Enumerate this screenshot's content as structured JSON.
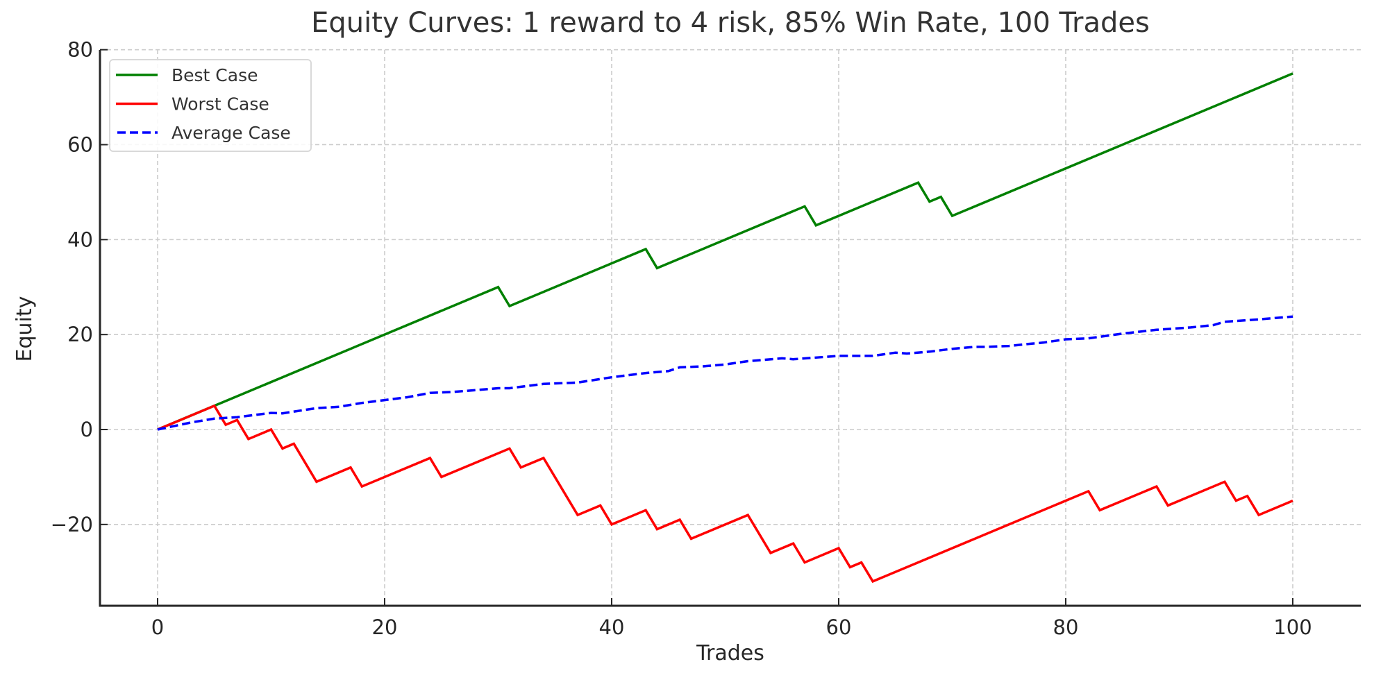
{
  "chart_data": {
    "type": "line",
    "title": "Equity Curves: 1 reward to 4 risk, 85% Win Rate, 100 Trades",
    "xlabel": "Trades",
    "ylabel": "Equity",
    "xlim": [
      -5,
      105.3
    ],
    "ylim": [
      -37.4,
      80
    ],
    "xticks": [
      0,
      20,
      40,
      60,
      80,
      100
    ],
    "yticks": [
      -20,
      0,
      20,
      40,
      60,
      80
    ],
    "ytick_labels": [
      "−20",
      "0",
      "20",
      "40",
      "60",
      "80"
    ],
    "grid": true,
    "legend_position": "upper left",
    "series": [
      {
        "name": "Best Case",
        "color": "#008000",
        "style": "solid",
        "breakpoints": [
          [
            0,
            0
          ],
          [
            30,
            30
          ],
          [
            31,
            26
          ],
          [
            43,
            38
          ],
          [
            44,
            34
          ],
          [
            57,
            47
          ],
          [
            58,
            43
          ],
          [
            67,
            52
          ],
          [
            68,
            48
          ],
          [
            69,
            49
          ],
          [
            70,
            45
          ],
          [
            100,
            75
          ]
        ]
      },
      {
        "name": "Worst Case",
        "color": "#ff0000",
        "style": "solid",
        "breakpoints": [
          [
            0,
            0
          ],
          [
            5,
            5
          ],
          [
            6,
            1
          ],
          [
            7,
            2
          ],
          [
            8,
            -2
          ],
          [
            10,
            0
          ],
          [
            11,
            -4
          ],
          [
            12,
            -3
          ],
          [
            14,
            -11
          ],
          [
            17,
            -8
          ],
          [
            18,
            -12
          ],
          [
            24,
            -6
          ],
          [
            25,
            -10
          ],
          [
            31,
            -4
          ],
          [
            32,
            -8
          ],
          [
            34,
            -6
          ],
          [
            37,
            -18
          ],
          [
            39,
            -16
          ],
          [
            40,
            -20
          ],
          [
            43,
            -17
          ],
          [
            44,
            -21
          ],
          [
            46,
            -19
          ],
          [
            47,
            -23
          ],
          [
            52,
            -18
          ],
          [
            54,
            -26
          ],
          [
            56,
            -24
          ],
          [
            57,
            -28
          ],
          [
            60,
            -25
          ],
          [
            61,
            -29
          ],
          [
            62,
            -28
          ],
          [
            63,
            -32
          ],
          [
            82,
            -13
          ],
          [
            83,
            -17
          ],
          [
            88,
            -12
          ],
          [
            89,
            -16
          ],
          [
            94,
            -11
          ],
          [
            95,
            -15
          ],
          [
            96,
            -14
          ],
          [
            97,
            -18
          ],
          [
            100,
            -15
          ]
        ]
      },
      {
        "name": "Average Case",
        "color": "#0000ff",
        "style": "dashed",
        "breakpoints": [
          [
            0,
            0
          ],
          [
            3,
            1.5
          ],
          [
            5,
            2.3
          ],
          [
            7,
            2.6
          ],
          [
            10,
            3.5
          ],
          [
            11,
            3.4
          ],
          [
            14,
            4.5
          ],
          [
            16,
            4.8
          ],
          [
            18,
            5.6
          ],
          [
            20,
            6.2
          ],
          [
            22,
            6.8
          ],
          [
            24,
            7.7
          ],
          [
            26,
            7.9
          ],
          [
            30,
            8.7
          ],
          [
            31,
            8.7
          ],
          [
            34,
            9.6
          ],
          [
            37,
            9.9
          ],
          [
            40,
            11.0
          ],
          [
            43,
            11.9
          ],
          [
            45,
            12.3
          ],
          [
            46,
            13.1
          ],
          [
            48,
            13.3
          ],
          [
            50,
            13.7
          ],
          [
            52,
            14.4
          ],
          [
            55,
            15.0
          ],
          [
            56,
            14.8
          ],
          [
            60,
            15.5
          ],
          [
            63,
            15.5
          ],
          [
            65,
            16.2
          ],
          [
            66,
            16.0
          ],
          [
            68,
            16.4
          ],
          [
            70,
            17.0
          ],
          [
            72,
            17.4
          ],
          [
            73,
            17.4
          ],
          [
            75,
            17.6
          ],
          [
            77,
            18.1
          ],
          [
            78,
            18.3
          ],
          [
            80,
            19.0
          ],
          [
            82,
            19.2
          ],
          [
            85,
            20.2
          ],
          [
            88,
            21.0
          ],
          [
            91,
            21.5
          ],
          [
            93,
            22.0
          ],
          [
            94,
            22.7
          ],
          [
            97,
            23.2
          ],
          [
            100,
            23.8
          ]
        ]
      }
    ]
  }
}
